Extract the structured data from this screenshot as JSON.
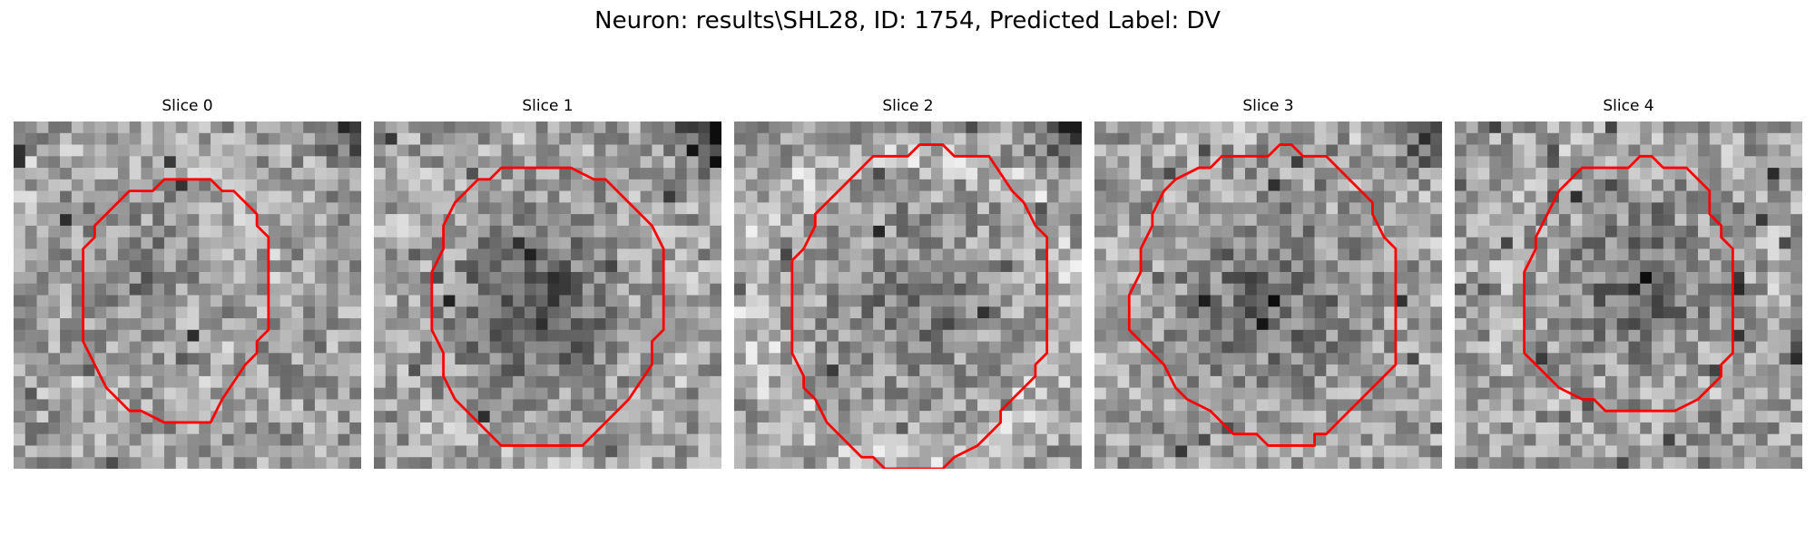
{
  "figure": {
    "title": "Neuron: results\\SHL28, ID: 1754, Predicted Label: DV"
  },
  "panels": [
    {
      "title": "Slice 0",
      "contour_color": "#ff0000"
    },
    {
      "title": "Slice 1",
      "contour_color": "#ff0000"
    },
    {
      "title": "Slice 2",
      "contour_color": "#ff0000"
    },
    {
      "title": "Slice 3",
      "contour_color": "#ff0000"
    },
    {
      "title": "Slice 4",
      "contour_color": "#ff0000"
    }
  ]
}
